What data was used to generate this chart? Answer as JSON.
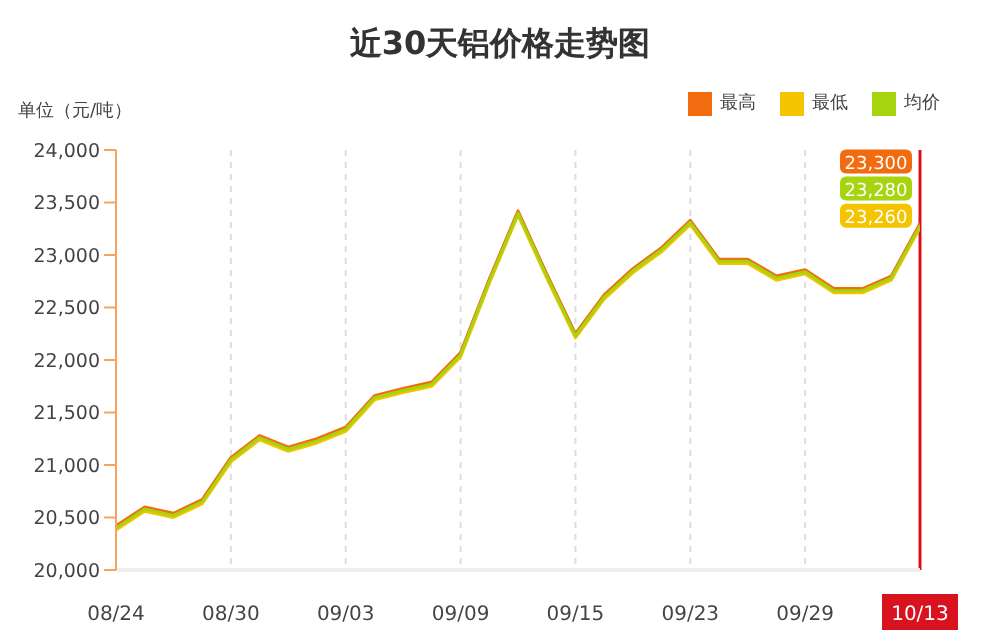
{
  "chart_data": {
    "type": "line",
    "title": "近30天铝价格走势图",
    "ylabel": "单位（元/吨）",
    "categories": [
      "08/24",
      null,
      null,
      null,
      "08/30",
      null,
      null,
      null,
      "09/03",
      null,
      null,
      null,
      "09/09",
      null,
      null,
      null,
      "09/15",
      null,
      null,
      null,
      "09/23",
      null,
      null,
      null,
      "09/29",
      null,
      null,
      null,
      "10/13"
    ],
    "series": [
      {
        "name": "最高",
        "color": "#f26b0f",
        "values": [
          20420,
          20600,
          20540,
          20670,
          21070,
          21280,
          21170,
          21250,
          21360,
          21660,
          21730,
          21790,
          22070,
          22770,
          23420,
          22820,
          22250,
          22620,
          22870,
          23070,
          23330,
          22960,
          22960,
          22800,
          22860,
          22680,
          22680,
          22800,
          23300
        ],
        "value_labels": [
          null,
          null,
          null,
          null,
          null,
          null,
          null,
          null,
          null,
          null,
          null,
          null,
          null,
          null,
          null,
          null,
          null,
          null,
          null,
          null,
          null,
          null,
          null,
          null,
          null,
          null,
          null,
          null,
          "23,300"
        ]
      },
      {
        "name": "最低",
        "color": "#f5c400",
        "values": [
          20380,
          20560,
          20500,
          20630,
          21030,
          21240,
          21130,
          21210,
          21320,
          21620,
          21690,
          21750,
          22030,
          22730,
          23380,
          22780,
          22210,
          22580,
          22830,
          23030,
          23290,
          22920,
          22920,
          22760,
          22820,
          22640,
          22640,
          22760,
          23260
        ],
        "value_labels": [
          null,
          null,
          null,
          null,
          null,
          null,
          null,
          null,
          null,
          null,
          null,
          null,
          null,
          null,
          null,
          null,
          null,
          null,
          null,
          null,
          null,
          null,
          null,
          null,
          null,
          null,
          null,
          null,
          "23,260"
        ]
      },
      {
        "name": "均价",
        "color": "#a6d40f",
        "values": [
          20400,
          20580,
          20520,
          20650,
          21050,
          21260,
          21150,
          21230,
          21340,
          21640,
          21710,
          21770,
          22050,
          22750,
          23400,
          22800,
          22230,
          22600,
          22850,
          23050,
          23310,
          22940,
          22940,
          22780,
          22840,
          22660,
          22660,
          22780,
          23280
        ],
        "value_labels": [
          null,
          null,
          null,
          null,
          null,
          null,
          null,
          null,
          null,
          null,
          null,
          null,
          null,
          null,
          null,
          null,
          null,
          null,
          null,
          null,
          null,
          null,
          null,
          null,
          null,
          null,
          null,
          null,
          "23,280"
        ]
      }
    ],
    "ylim": [
      20000,
      24000
    ],
    "yticks": [
      {
        "value": 20000,
        "label": "20,000"
      },
      {
        "value": 20500,
        "label": "20,500"
      },
      {
        "value": 21000,
        "label": "21,000"
      },
      {
        "value": 21500,
        "label": "21,500"
      },
      {
        "value": 22000,
        "label": "22,000"
      },
      {
        "value": 22500,
        "label": "22,500"
      },
      {
        "value": 23000,
        "label": "23,000"
      },
      {
        "value": 23500,
        "label": "23,500"
      },
      {
        "value": 24000,
        "label": "24,000"
      }
    ],
    "ref_lines": [
      {
        "axis": "x",
        "value": "10/13",
        "color": "#d9121f"
      }
    ],
    "grid": "x",
    "legend": "top right",
    "marker": "none",
    "line_style": "solid"
  }
}
